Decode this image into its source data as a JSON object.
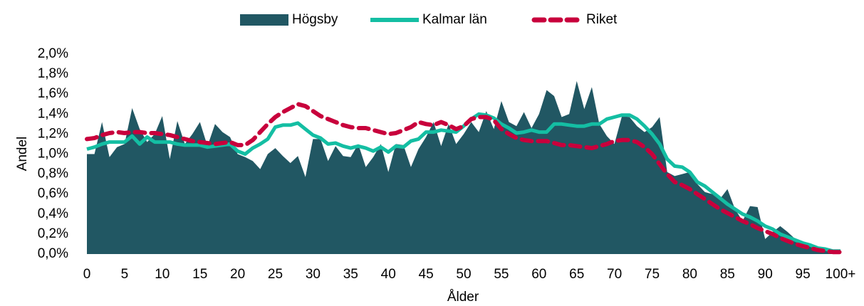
{
  "chart_data": {
    "type": "area_line",
    "x_label": "Ålder",
    "y_label": "Andel",
    "categories": [
      "0",
      null,
      null,
      null,
      null,
      "5",
      null,
      null,
      null,
      null,
      "10",
      null,
      null,
      null,
      null,
      "15",
      null,
      null,
      null,
      null,
      "20",
      null,
      null,
      null,
      null,
      "25",
      null,
      null,
      null,
      null,
      "30",
      null,
      null,
      null,
      null,
      "35",
      null,
      null,
      null,
      null,
      "40",
      null,
      null,
      null,
      null,
      "45",
      null,
      null,
      null,
      null,
      "50",
      null,
      null,
      null,
      null,
      "55",
      null,
      null,
      null,
      null,
      "60",
      null,
      null,
      null,
      null,
      "65",
      null,
      null,
      null,
      null,
      "70",
      null,
      null,
      null,
      null,
      "75",
      null,
      null,
      null,
      null,
      "80",
      null,
      null,
      null,
      null,
      "85",
      null,
      null,
      null,
      null,
      "90",
      null,
      null,
      null,
      null,
      "95",
      null,
      null,
      null,
      null,
      "100+"
    ],
    "ylim": [
      0,
      2.0
    ],
    "yticks": [
      {
        "value": 0,
        "label": "0,0%"
      },
      {
        "value": 0.2,
        "label": "0,2%"
      },
      {
        "value": 0.4,
        "label": "0,4%"
      },
      {
        "value": 0.6,
        "label": "0,6%"
      },
      {
        "value": 0.8,
        "label": "0,8%"
      },
      {
        "value": 1.0,
        "label": "1,0%"
      },
      {
        "value": 1.2,
        "label": "1,2%"
      },
      {
        "value": 1.4,
        "label": "1,4%"
      },
      {
        "value": 1.6,
        "label": "1,6%"
      },
      {
        "value": 1.8,
        "label": "1,8%"
      },
      {
        "value": 2.0,
        "label": "2,0%"
      }
    ],
    "legend": "top",
    "series": [
      {
        "name": "Högsby",
        "kind": "area",
        "color": "#215763",
        "values": [
          1.0,
          1.0,
          1.32,
          0.97,
          1.07,
          1.1,
          1.46,
          1.25,
          1.12,
          1.2,
          1.38,
          0.95,
          1.33,
          1.1,
          1.2,
          1.32,
          1.08,
          1.3,
          1.22,
          1.17,
          1.0,
          0.97,
          0.93,
          0.85,
          1.0,
          1.06,
          0.98,
          0.91,
          0.98,
          0.77,
          1.15,
          1.15,
          0.93,
          1.08,
          0.98,
          0.97,
          1.1,
          0.87,
          0.97,
          1.1,
          0.82,
          1.1,
          1.09,
          0.87,
          1.05,
          1.17,
          1.32,
          1.08,
          1.3,
          1.1,
          1.2,
          1.32,
          1.22,
          1.43,
          1.25,
          1.53,
          1.32,
          1.28,
          1.42,
          1.26,
          1.4,
          1.64,
          1.58,
          1.37,
          1.4,
          1.73,
          1.45,
          1.67,
          1.3,
          1.18,
          1.1,
          1.38,
          1.37,
          1.28,
          1.22,
          1.27,
          1.37,
          0.82,
          0.78,
          0.8,
          0.82,
          0.7,
          0.62,
          0.6,
          0.55,
          0.65,
          0.45,
          0.33,
          0.48,
          0.47,
          0.15,
          0.22,
          0.28,
          0.22,
          0.15,
          0.1,
          0.08,
          0.06,
          0.04,
          0.03,
          0.03
        ]
      },
      {
        "name": "Kalmar län",
        "kind": "line",
        "color": "#14bea3",
        "values": [
          1.05,
          1.07,
          1.1,
          1.12,
          1.12,
          1.12,
          1.18,
          1.1,
          1.17,
          1.12,
          1.12,
          1.12,
          1.1,
          1.09,
          1.09,
          1.09,
          1.07,
          1.08,
          1.09,
          1.1,
          1.03,
          1.0,
          1.06,
          1.1,
          1.15,
          1.27,
          1.29,
          1.29,
          1.31,
          1.25,
          1.19,
          1.16,
          1.1,
          1.11,
          1.08,
          1.06,
          1.08,
          1.06,
          1.03,
          1.07,
          1.02,
          1.08,
          1.07,
          1.13,
          1.15,
          1.22,
          1.22,
          1.24,
          1.23,
          1.22,
          1.28,
          1.35,
          1.4,
          1.39,
          1.36,
          1.3,
          1.26,
          1.21,
          1.22,
          1.24,
          1.22,
          1.22,
          1.3,
          1.3,
          1.29,
          1.28,
          1.28,
          1.3,
          1.3,
          1.35,
          1.37,
          1.39,
          1.39,
          1.35,
          1.28,
          1.2,
          1.1,
          0.95,
          0.88,
          0.87,
          0.82,
          0.72,
          0.68,
          0.62,
          0.56,
          0.5,
          0.45,
          0.4,
          0.37,
          0.33,
          0.28,
          0.25,
          0.2,
          0.17,
          0.14,
          0.11,
          0.09,
          0.06,
          0.05,
          0.03,
          0.03
        ]
      },
      {
        "name": "Riket",
        "kind": "dashed",
        "color": "#c8003c",
        "values": [
          1.15,
          1.16,
          1.19,
          1.21,
          1.22,
          1.21,
          1.22,
          1.22,
          1.21,
          1.21,
          1.2,
          1.19,
          1.17,
          1.15,
          1.13,
          1.12,
          1.11,
          1.1,
          1.11,
          1.12,
          1.09,
          1.09,
          1.14,
          1.22,
          1.3,
          1.37,
          1.42,
          1.46,
          1.5,
          1.48,
          1.43,
          1.38,
          1.35,
          1.32,
          1.29,
          1.27,
          1.26,
          1.26,
          1.24,
          1.22,
          1.2,
          1.21,
          1.24,
          1.27,
          1.32,
          1.3,
          1.29,
          1.32,
          1.29,
          1.25,
          1.28,
          1.35,
          1.37,
          1.37,
          1.34,
          1.25,
          1.2,
          1.16,
          1.14,
          1.13,
          1.13,
          1.13,
          1.11,
          1.09,
          1.09,
          1.08,
          1.07,
          1.06,
          1.08,
          1.1,
          1.13,
          1.14,
          1.14,
          1.12,
          1.07,
          1.0,
          0.9,
          0.8,
          0.72,
          0.69,
          0.65,
          0.6,
          0.55,
          0.5,
          0.45,
          0.41,
          0.37,
          0.33,
          0.3,
          0.26,
          0.23,
          0.2,
          0.16,
          0.13,
          0.1,
          0.08,
          0.06,
          0.04,
          0.03,
          0.02,
          0.02
        ]
      }
    ]
  }
}
